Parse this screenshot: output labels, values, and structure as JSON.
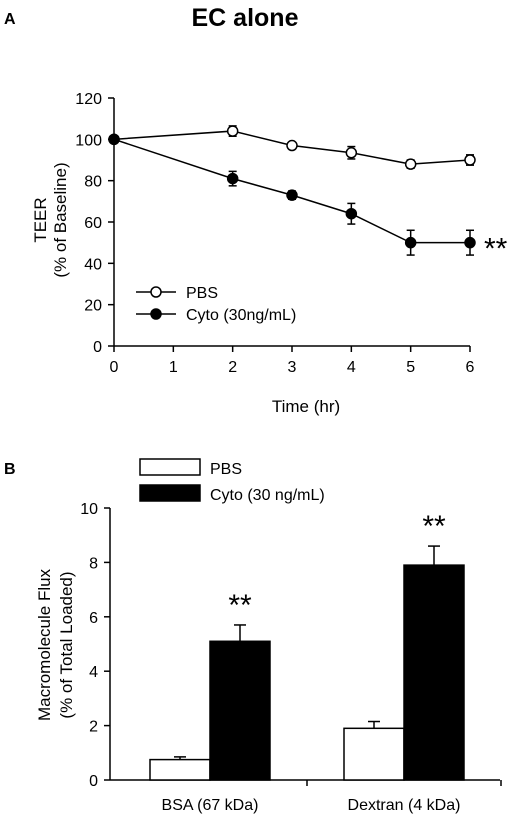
{
  "figure": {
    "title": "EC alone"
  },
  "chart_data": [
    {
      "panel": "A",
      "type": "line",
      "title": "EC alone",
      "xlabel": "Time (hr)",
      "ylabel_line1": "TEER",
      "ylabel_line2": "(% of Baseline)",
      "xlim": [
        0,
        6
      ],
      "ylim": [
        0,
        120
      ],
      "xticks": [
        "0",
        "1",
        "2",
        "3",
        "4",
        "5",
        "6"
      ],
      "yticks": [
        "0",
        "20",
        "40",
        "60",
        "80",
        "100",
        "120"
      ],
      "legend": "middle-left",
      "grid": false,
      "series": [
        {
          "name": "PBS",
          "marker": "open-circle",
          "x": [
            0,
            2,
            3,
            4,
            5,
            6
          ],
          "y": [
            100,
            104,
            97,
            93.5,
            88,
            90
          ],
          "err": [
            0,
            2.5,
            1.5,
            3,
            2,
            2.5
          ]
        },
        {
          "name": "Cyto (30ng/mL)",
          "marker": "filled-circle",
          "x": [
            0,
            2,
            3,
            4,
            5,
            6
          ],
          "y": [
            100,
            81,
            73,
            64,
            50,
            50
          ],
          "err": [
            0,
            3.5,
            2,
            5,
            6,
            6
          ]
        }
      ],
      "annotations": [
        {
          "text": "**",
          "series": "Cyto (30ng/mL)",
          "x": 6
        }
      ]
    },
    {
      "panel": "B",
      "type": "bar",
      "ylabel_line1": "Macromolecule Flux",
      "ylabel_line2": "(% of Total Loaded)",
      "categories": [
        "BSA (67 kDa)",
        "Dextran (4 kDa)"
      ],
      "ylim": [
        0,
        10
      ],
      "yticks": [
        "0",
        "2",
        "4",
        "6",
        "8",
        "10"
      ],
      "legend": "top-left",
      "grid": false,
      "series": [
        {
          "name": "PBS",
          "color": "#ffffff",
          "values": [
            0.75,
            1.9
          ],
          "err": [
            0.1,
            0.25
          ]
        },
        {
          "name": "Cyto (30 ng/mL)",
          "color": "#000000",
          "values": [
            5.1,
            7.9
          ],
          "err": [
            0.6,
            0.7
          ]
        }
      ],
      "annotations": [
        {
          "text": "**",
          "category": 0,
          "series": 1
        },
        {
          "text": "**",
          "category": 1,
          "series": 1
        }
      ]
    }
  ]
}
